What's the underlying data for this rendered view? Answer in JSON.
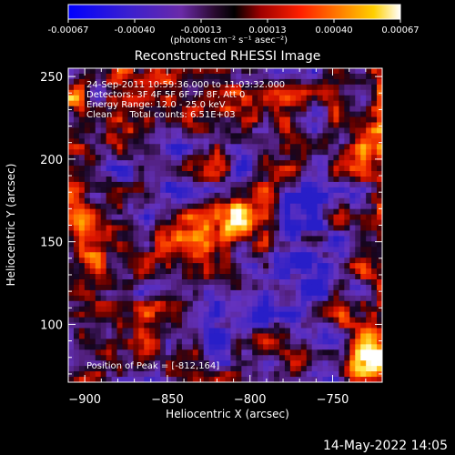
{
  "colorbar": {
    "ticks": [
      "-0.00067",
      "-0.00040",
      "-0.00013",
      "0.00013",
      "0.00040",
      "0.00067"
    ],
    "units": "(photons cm⁻² s⁻¹ asec⁻²)"
  },
  "plot": {
    "title": "Reconstructed RHESSI Image",
    "info_lines": [
      "24-Sep-2011 10:59:36.000 to 11:03:32.000",
      "Detectors: 3F 4F 5F 6F 7F 8F, Att 0",
      "Energy Range: 12.0 - 25.0 keV",
      "Clean      Total counts: 6.51E+03"
    ],
    "peak_label": "Position of Peak = [-812,164]"
  },
  "chart_data": {
    "type": "heatmap",
    "title": "Reconstructed RHESSI Image",
    "xlabel": "Heliocentric X (arcsec)",
    "ylabel": "Heliocentric Y (arcsec)",
    "xlim": [
      -910,
      -720
    ],
    "ylim": [
      65,
      255
    ],
    "x_ticks": [
      -900,
      -850,
      -800,
      -750
    ],
    "y_ticks": [
      100,
      150,
      200,
      250
    ],
    "clim": [
      -0.00067,
      0.00067
    ],
    "colormap": "red-temperature (blue-purple-black-red-yellow-white)",
    "peak_position": [
      -812,
      164
    ]
  },
  "footer": {
    "date": "14-May-2022 14:05"
  }
}
